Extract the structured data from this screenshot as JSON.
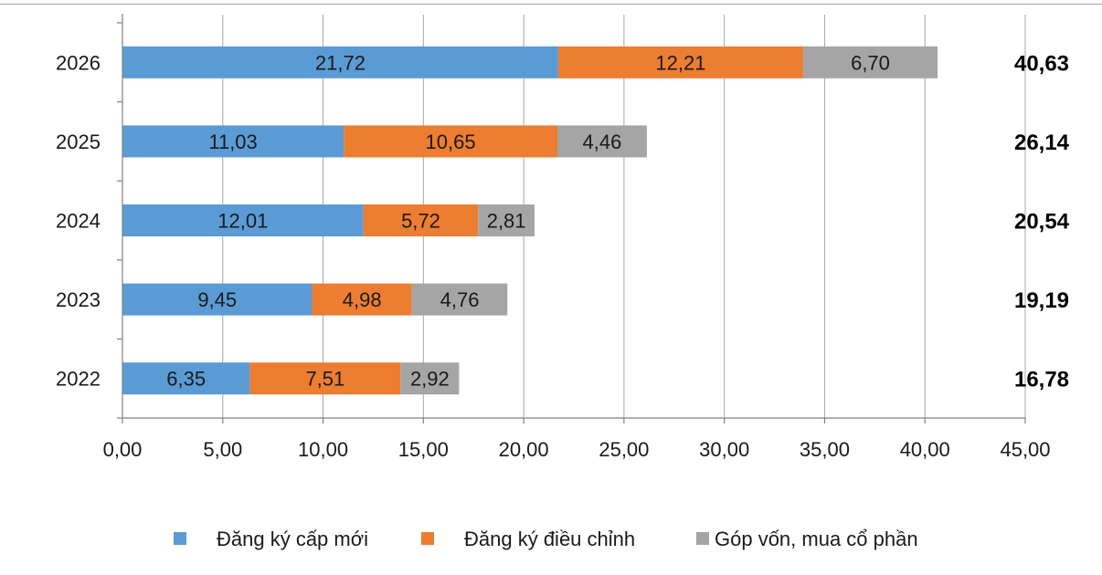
{
  "chart_data": {
    "type": "bar",
    "orientation": "horizontal",
    "stacked": true,
    "categories": [
      "2022",
      "2023",
      "2024",
      "2025",
      "2026"
    ],
    "series": [
      {
        "name": "Đăng ký cấp mới",
        "color": "#5b9bd5",
        "values": [
          6.35,
          9.45,
          12.01,
          11.03,
          21.72
        ],
        "labels": [
          "6,35",
          "9,45",
          "12,01",
          "11,03",
          "21,72"
        ]
      },
      {
        "name": "Đăng ký điều chỉnh",
        "color": "#ed7d31",
        "values": [
          7.51,
          4.98,
          5.72,
          10.65,
          12.21
        ],
        "labels": [
          "7,51",
          "4,98",
          "5,72",
          "10,65",
          "12,21"
        ]
      },
      {
        "name": "Góp vốn, mua cổ phần",
        "color": "#a5a5a5",
        "values": [
          2.92,
          4.76,
          2.81,
          4.46,
          6.7
        ],
        "labels": [
          "2,92",
          "4,76",
          "2,81",
          "4,46",
          "6,70"
        ]
      }
    ],
    "totals": [
      "16,78",
      "19,19",
      "20,54",
      "26,14",
      "40,63"
    ],
    "xlim": [
      0,
      45
    ],
    "x_ticks": [
      0,
      5,
      10,
      15,
      20,
      25,
      30,
      35,
      40,
      45
    ],
    "x_tick_labels": [
      "0,00",
      "5,00",
      "10,00",
      "15,00",
      "20,00",
      "25,00",
      "30,00",
      "35,00",
      "40,00",
      "45,00"
    ],
    "grid": true,
    "legend_position": "bottom",
    "title": "",
    "xlabel": "",
    "ylabel": ""
  }
}
